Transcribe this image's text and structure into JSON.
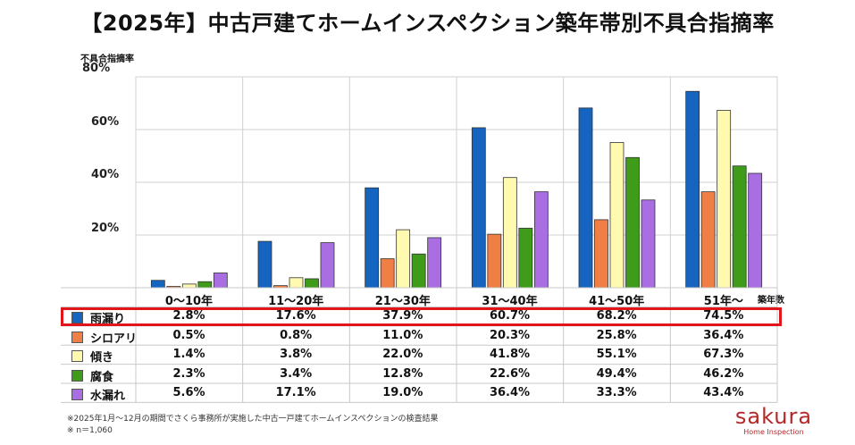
{
  "title": "【2025年】中古戸建てホームインスペクション築年帯別不具合指摘率",
  "chart_data": {
    "type": "bar",
    "ylabel": "不具合指摘率",
    "xlabel": "築年数",
    "ylim": [
      0,
      80
    ],
    "yticks": [
      "80%",
      "60%",
      "40%",
      "20%"
    ],
    "categories": [
      "0〜10年",
      "11〜20年",
      "21〜30年",
      "31〜40年",
      "41〜50年",
      "51年〜"
    ],
    "series": [
      {
        "name": "雨漏り",
        "color": "#1565c0",
        "values": [
          2.8,
          17.6,
          37.9,
          60.7,
          68.2,
          74.5
        ],
        "labels": [
          "2.8%",
          "17.6%",
          "37.9%",
          "60.7%",
          "68.2%",
          "74.5%"
        ]
      },
      {
        "name": "シロアリ",
        "color": "#f07f46",
        "values": [
          0.5,
          0.8,
          11.0,
          20.3,
          25.8,
          36.4
        ],
        "labels": [
          "0.5%",
          "0.8%",
          "11.0%",
          "20.3%",
          "25.8%",
          "36.4%"
        ]
      },
      {
        "name": "傾き",
        "color": "#fffab0",
        "values": [
          1.4,
          3.8,
          22.0,
          41.8,
          55.1,
          67.3
        ],
        "labels": [
          "1.4%",
          "3.8%",
          "22.0%",
          "41.8%",
          "55.1%",
          "67.3%"
        ]
      },
      {
        "name": "腐食",
        "color": "#3f9c1a",
        "values": [
          2.3,
          3.4,
          12.8,
          22.6,
          49.4,
          46.2
        ],
        "labels": [
          "2.3%",
          "3.4%",
          "12.8%",
          "22.6%",
          "49.4%",
          "46.2%"
        ]
      },
      {
        "name": "水漏れ",
        "color": "#a96ee2",
        "values": [
          5.6,
          17.1,
          19.0,
          36.4,
          33.3,
          43.4
        ],
        "labels": [
          "5.6%",
          "17.1%",
          "19.0%",
          "36.4%",
          "33.3%",
          "43.4%"
        ]
      }
    ],
    "highlighted_series": "雨漏り",
    "grid": true
  },
  "footnotes": {
    "source": "※2025年1月〜12月の期間でさくら事務所が実施した中古一戸建てホームインスペクションの検査結果",
    "sample": "※ n＝1,060"
  },
  "logo": {
    "name": "sakura",
    "sub": "Home Inspection",
    "color": "#b5282a"
  }
}
